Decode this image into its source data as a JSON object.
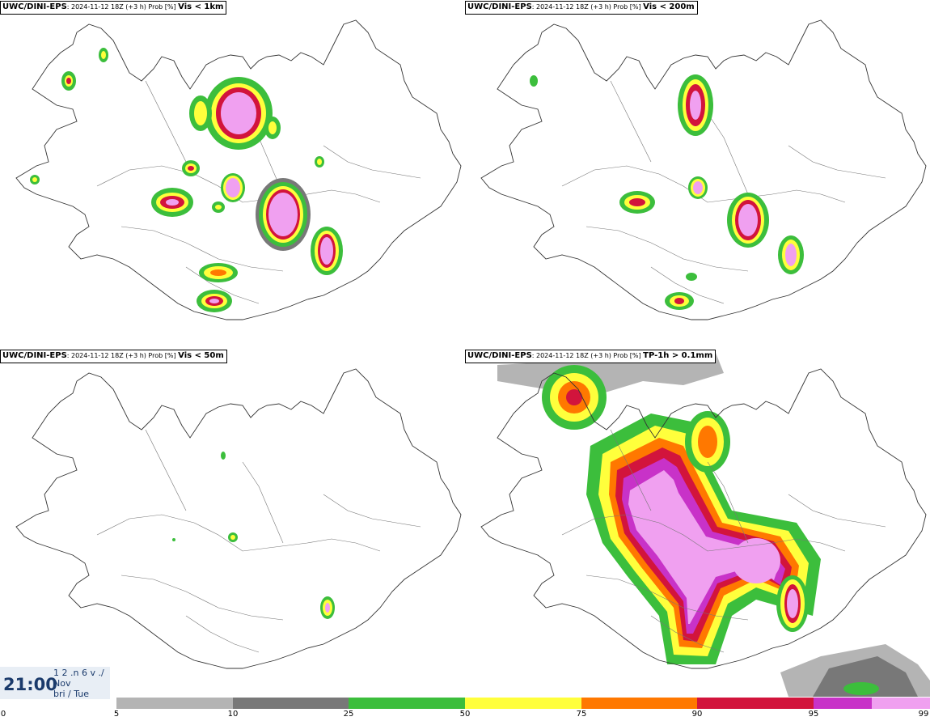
{
  "panels": [
    {
      "source": "UWC/DINI-EPS",
      "meta": ": 2024-11-12 18Z (+3 h) Prob [%] ",
      "variable": "Vis < 1km"
    },
    {
      "source": "UWC/DINI-EPS",
      "meta": ": 2024-11-12 18Z (+3 h) Prob [%] ",
      "variable": "Vis < 200m"
    },
    {
      "source": "UWC/DINI-EPS",
      "meta": ": 2024-11-12 18Z (+3 h) Prob [%] ",
      "variable": "Vis < 50m"
    },
    {
      "source": "UWC/DINI-EPS",
      "meta": ": 2024-11-12 18Z (+3 h) Prob [%] ",
      "variable": "TP-1h > 0.1mm"
    }
  ],
  "timestamp": {
    "time": "21:00",
    "line1": "1 2 .n 6 v ./",
    "line2": "Nov",
    "line3": "bri / Tue"
  },
  "colorbar": {
    "ticks": [
      "0",
      "5",
      "10",
      "25",
      "50",
      "75",
      "90",
      "95",
      "99"
    ],
    "colors": [
      "#b4b4b4",
      "#787878",
      "#3cbe3c",
      "#ffff3c",
      "#ff7800",
      "#d2143c",
      "#c832c8",
      "#f0a0f0"
    ]
  },
  "legend_colors": {
    "p5": "#b4b4b4",
    "p10": "#787878",
    "p25": "#3cbe3c",
    "p50": "#ffff3c",
    "p75": "#ff7800",
    "p90": "#d2143c",
    "p95": "#c832c8",
    "p99": "#f0a0f0"
  }
}
